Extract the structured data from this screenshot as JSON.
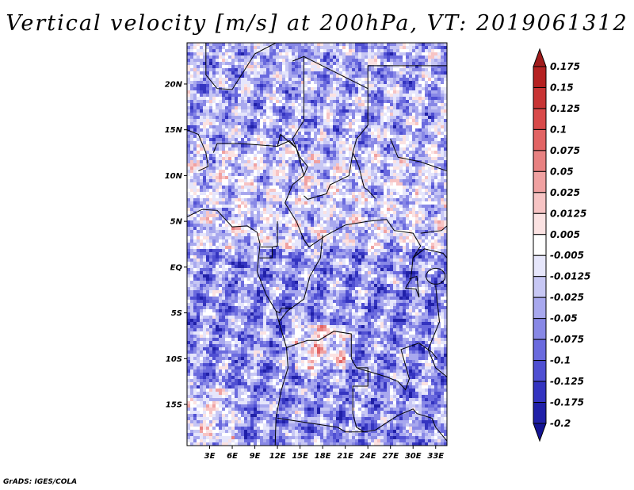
{
  "title": "Vertical velocity [m/s] at 200hPa, VT: 2019061312",
  "credit": "GrADS: IGES/COLA",
  "map": {
    "lat_range": [
      -19.5,
      24.5
    ],
    "lon_range": [
      0,
      34.5
    ],
    "lat_ticks": [
      {
        "lat": 20,
        "label": "20N"
      },
      {
        "lat": 15,
        "label": "15N"
      },
      {
        "lat": 10,
        "label": "10N"
      },
      {
        "lat": 5,
        "label": "5N"
      },
      {
        "lat": 0,
        "label": "EQ"
      },
      {
        "lat": -5,
        "label": "5S"
      },
      {
        "lat": -10,
        "label": "10S"
      },
      {
        "lat": -15,
        "label": "15S"
      }
    ],
    "lon_ticks": [
      {
        "lon": 3,
        "label": "3E"
      },
      {
        "lon": 6,
        "label": "6E"
      },
      {
        "lon": 9,
        "label": "9E"
      },
      {
        "lon": 12,
        "label": "12E"
      },
      {
        "lon": 15,
        "label": "15E"
      },
      {
        "lon": 18,
        "label": "18E"
      },
      {
        "lon": 21,
        "label": "21E"
      },
      {
        "lon": 24,
        "label": "24E"
      },
      {
        "lon": 27,
        "label": "27E"
      },
      {
        "lon": 30,
        "label": "30E"
      },
      {
        "lon": 33,
        "label": "33E"
      }
    ]
  },
  "colorbar": {
    "labels": [
      "0.175",
      "0.15",
      "0.125",
      "0.1",
      "0.075",
      "0.05",
      "0.025",
      "0.0125",
      "0.005",
      "-0.005",
      "-0.0125",
      "-0.025",
      "-0.05",
      "-0.075",
      "-0.1",
      "-0.125",
      "-0.175",
      "-0.2"
    ],
    "colors": [
      "#a01c1c",
      "#b52121",
      "#c83434",
      "#d94a4a",
      "#e26464",
      "#e88181",
      "#f0a1a1",
      "#f7c4c4",
      "#fbe2e2",
      "#ffffff",
      "#e6e6fb",
      "#c7c7f4",
      "#a8a8ee",
      "#8888e6",
      "#6a6ade",
      "#4f4fd2",
      "#3434c0",
      "#2020a8",
      "#141494"
    ]
  }
}
